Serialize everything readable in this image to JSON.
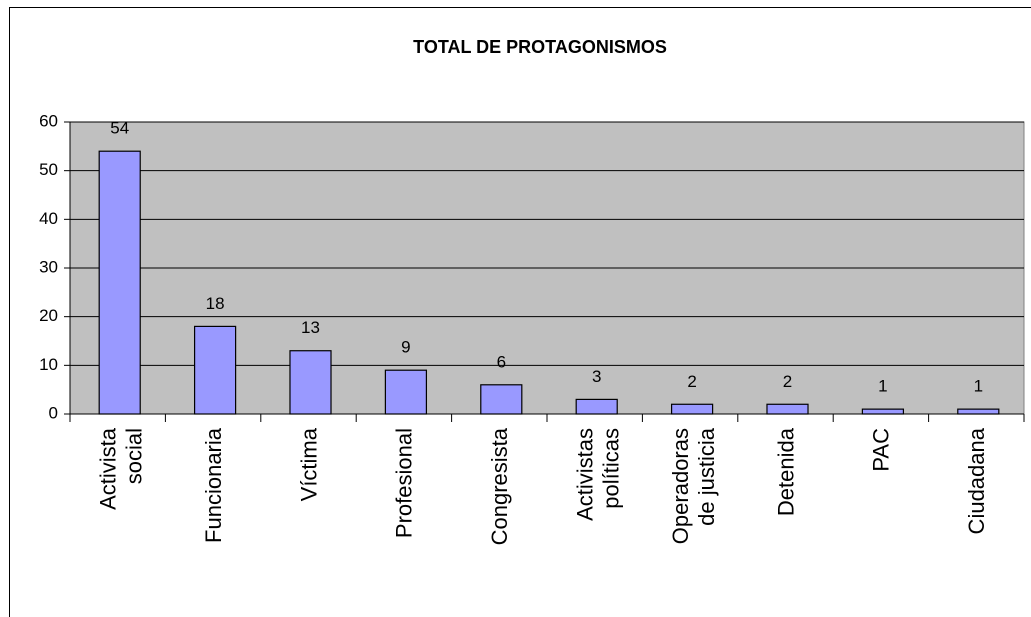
{
  "chart_data": {
    "type": "bar",
    "title": "TOTAL DE PROTAGONISMOS",
    "categories": [
      "Activista social",
      "Funcionaria",
      "Víctima",
      "Profesional",
      "Congresista",
      "Activistas políticas",
      "Operadoras de justicia",
      "Detenida",
      "PAC",
      "Ciudadana"
    ],
    "values": [
      54,
      18,
      13,
      9,
      6,
      3,
      2,
      2,
      1,
      1
    ],
    "color": "#9999ff",
    "ylim": [
      0,
      60
    ],
    "yticks": [
      0,
      10,
      20,
      30,
      40,
      50,
      60
    ],
    "grid": true
  }
}
